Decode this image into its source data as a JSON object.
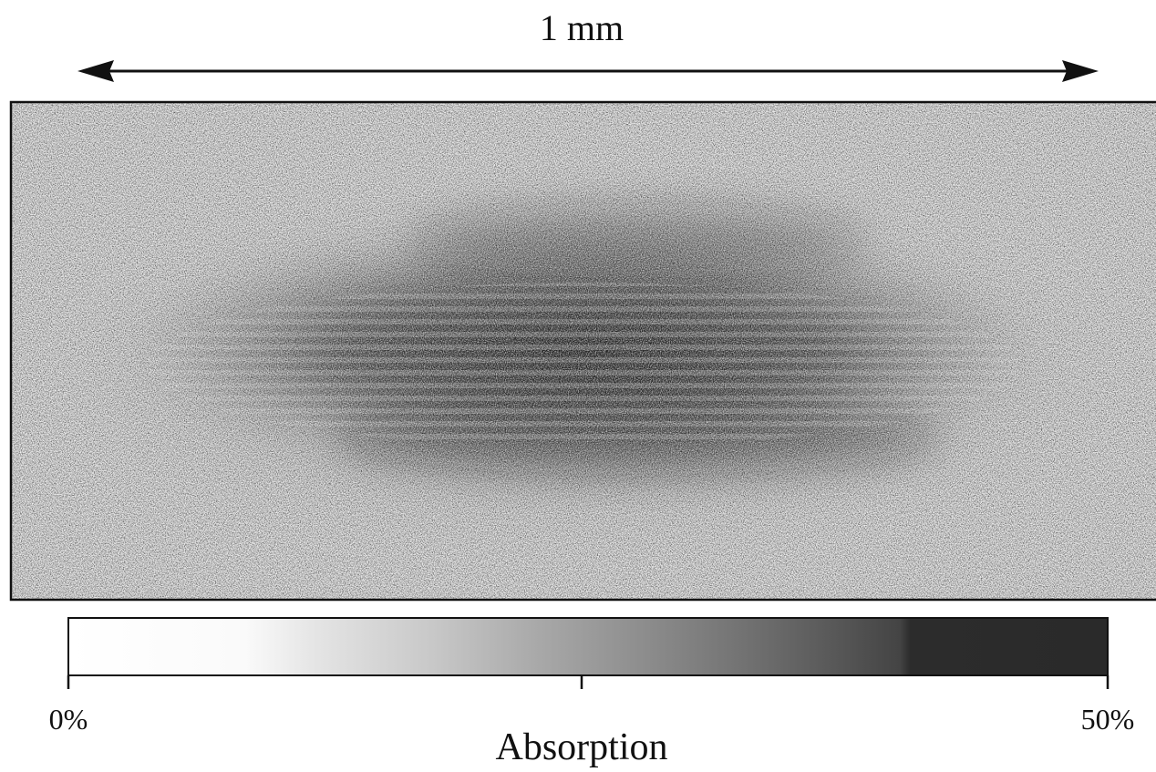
{
  "scale_bar": {
    "label": "1 mm"
  },
  "colorbar": {
    "label": "Absorption",
    "min_label": "0%",
    "max_label": "50%"
  }
}
